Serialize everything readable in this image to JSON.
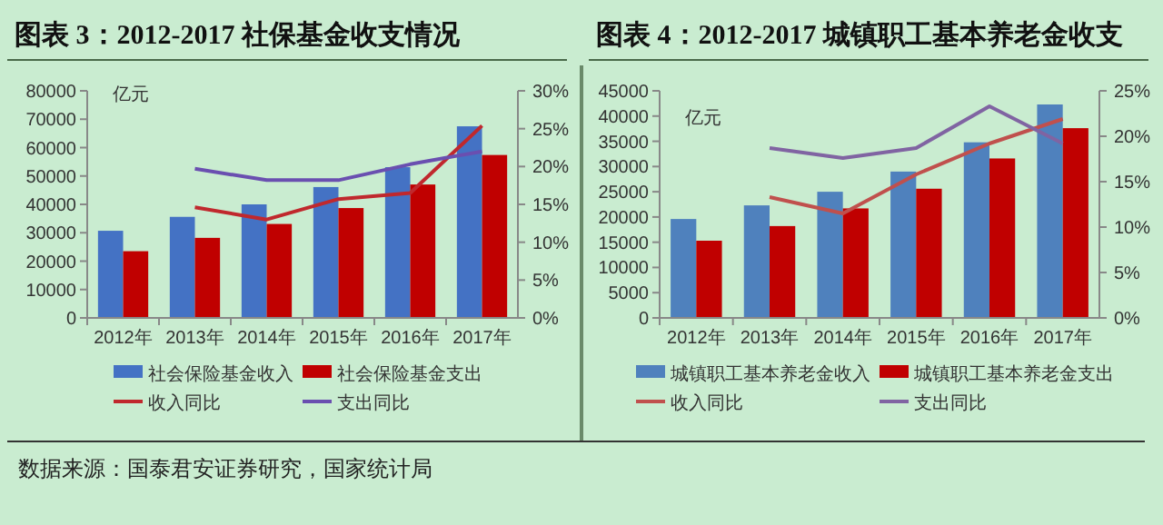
{
  "chart_data": [
    {
      "type": "bar",
      "title": "图表 3：2012-2017 社保基金收支情况",
      "ylabel": "亿元",
      "categories": [
        "2012年",
        "2013年",
        "2014年",
        "2015年",
        "2016年",
        "2017年"
      ],
      "series": [
        {
          "name": "社会保险基金收入",
          "color": "#4472c4",
          "values": [
            30700,
            35600,
            40000,
            46100,
            53100,
            67500
          ]
        },
        {
          "name": "社会保险基金支出",
          "color": "#c00000",
          "values": [
            23500,
            28200,
            33100,
            38700,
            47000,
            57400
          ]
        },
        {
          "name": "收入同比",
          "type": "line",
          "axis": "y2",
          "color": "#c0282d",
          "values": [
            null,
            14.6,
            13.0,
            15.7,
            16.5,
            25.4
          ]
        },
        {
          "name": "支出同比",
          "type": "line",
          "axis": "y2",
          "color": "#6a4fb0",
          "values": [
            null,
            19.7,
            18.2,
            18.2,
            20.3,
            22.0
          ]
        }
      ],
      "ylim": [
        0,
        80000
      ],
      "yticks": [
        0,
        10000,
        20000,
        30000,
        40000,
        50000,
        60000,
        70000,
        80000
      ],
      "y2lim": [
        0,
        30
      ],
      "y2ticks": [
        {
          "value": 0,
          "label": "0%"
        },
        {
          "value": 5,
          "label": "5%"
        },
        {
          "value": 10,
          "label": "10%"
        },
        {
          "value": 15,
          "label": "15%"
        },
        {
          "value": 20,
          "label": "20%"
        },
        {
          "value": 25,
          "label": "25%"
        },
        {
          "value": 30,
          "label": "30%"
        }
      ],
      "legend": "bottom",
      "grid": false,
      "annotations": [
        "数据来源：国泰君安证券研究，国家统计局"
      ]
    },
    {
      "type": "bar",
      "title": "图表 4：2012-2017 城镇职工基本养老金收支",
      "ylabel": "亿元",
      "categories": [
        "2012年",
        "2013年",
        "2014年",
        "2015年",
        "2016年",
        "2017年"
      ],
      "series": [
        {
          "name": "城镇职工基本养老金收入",
          "color": "#4f81bd",
          "values": [
            19600,
            22300,
            25000,
            29000,
            34800,
            42300
          ]
        },
        {
          "name": "城镇职工基本养老金支出",
          "color": "#c00000",
          "values": [
            15300,
            18200,
            21700,
            25600,
            31600,
            37600
          ]
        },
        {
          "name": "收入同比",
          "type": "line",
          "axis": "y2",
          "color": "#c0504d",
          "values": [
            null,
            13.3,
            11.5,
            15.8,
            19.2,
            21.9
          ]
        },
        {
          "name": "支出同比",
          "type": "line",
          "axis": "y2",
          "color": "#8064a2",
          "values": [
            null,
            18.7,
            17.6,
            18.7,
            23.3,
            19.2
          ]
        }
      ],
      "ylim": [
        0,
        45000
      ],
      "yticks": [
        0,
        5000,
        10000,
        15000,
        20000,
        25000,
        30000,
        35000,
        40000,
        45000
      ],
      "y2lim": [
        0,
        25
      ],
      "y2ticks": [
        {
          "value": 0,
          "label": "0%"
        },
        {
          "value": 5,
          "label": "5%"
        },
        {
          "value": 10,
          "label": "10%"
        },
        {
          "value": 15,
          "label": "15%"
        },
        {
          "value": 20,
          "label": "20%"
        },
        {
          "value": 25,
          "label": "25%"
        }
      ],
      "legend": "bottom",
      "grid": false
    }
  ]
}
